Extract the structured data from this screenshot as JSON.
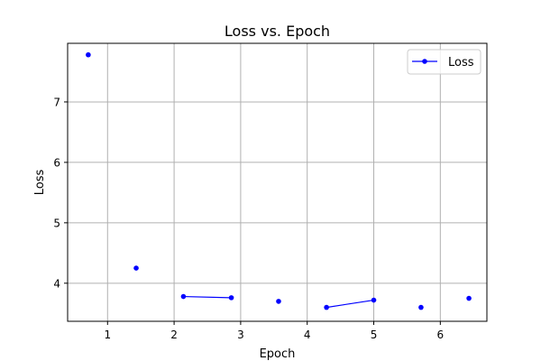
{
  "chart_data": {
    "type": "line",
    "title": "Loss vs. Epoch",
    "xlabel": "Epoch",
    "ylabel": "Loss",
    "xlim": [
      0.4,
      6.7
    ],
    "ylim": [
      3.37,
      7.97
    ],
    "xticks": [
      1,
      2,
      3,
      4,
      5,
      6
    ],
    "yticks": [
      4,
      5,
      6,
      7
    ],
    "grid": true,
    "legend": {
      "placement": "top-right",
      "entries": [
        "Loss"
      ]
    },
    "colors": {
      "series": "#0000ff",
      "grid": "#b0b0b0",
      "axes": "#000000"
    },
    "series": [
      {
        "name": "Loss",
        "x": [
          0.71,
          1.43,
          2.14,
          2.86,
          3.57,
          4.29,
          5.0,
          5.71,
          6.43
        ],
        "y": [
          7.78,
          4.25,
          3.78,
          3.76,
          3.7,
          3.6,
          3.72,
          3.6,
          3.75
        ],
        "segments": [
          [
            0
          ],
          [
            1
          ],
          [
            2,
            3
          ],
          [
            4
          ],
          [
            5,
            6
          ],
          [
            7
          ],
          [
            8
          ]
        ]
      }
    ]
  }
}
